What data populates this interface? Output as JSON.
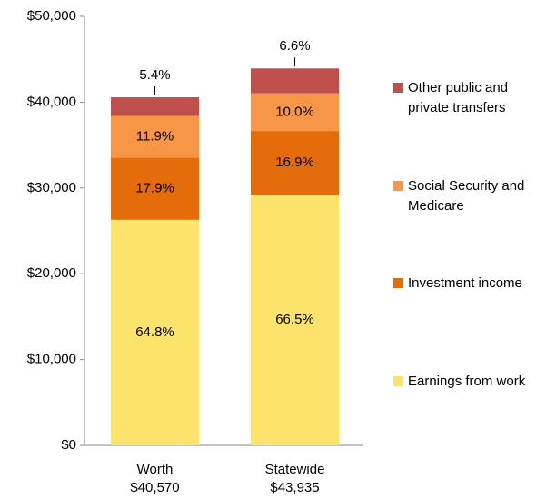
{
  "chart_data": {
    "type": "stacked_bar",
    "categories": [
      "Worth",
      "Statewide"
    ],
    "category_totals": [
      "$40,570",
      "$43,935"
    ],
    "series": [
      {
        "name": "Earnings from work",
        "color": "#fce36c",
        "values": [
          26289,
          29217
        ],
        "value_labels": [
          "64.8%",
          "66.5%"
        ]
      },
      {
        "name": "Investment income",
        "color": "#e46c0a",
        "values": [
          7262,
          7425
        ],
        "value_labels": [
          "17.9%",
          "16.9%"
        ]
      },
      {
        "name": "Social Security and Medicare",
        "color": "#f79646",
        "values": [
          4828,
          4394
        ],
        "value_labels": [
          "11.9%",
          "10.0%"
        ]
      },
      {
        "name": "Other public and private transfers",
        "color": "#c0504d",
        "values": [
          2191,
          2899
        ],
        "value_labels": [
          "5.4%",
          "6.6%"
        ]
      }
    ],
    "ylim": [
      0,
      50000
    ],
    "yticks": [
      {
        "value": 0,
        "label": "$0"
      },
      {
        "value": 10000,
        "label": "$10,000"
      },
      {
        "value": 20000,
        "label": "$20,000"
      },
      {
        "value": 30000,
        "label": "$30,000"
      },
      {
        "value": 40000,
        "label": "$40,000"
      },
      {
        "value": 50000,
        "label": "$50,000"
      }
    ],
    "legend": "right"
  }
}
